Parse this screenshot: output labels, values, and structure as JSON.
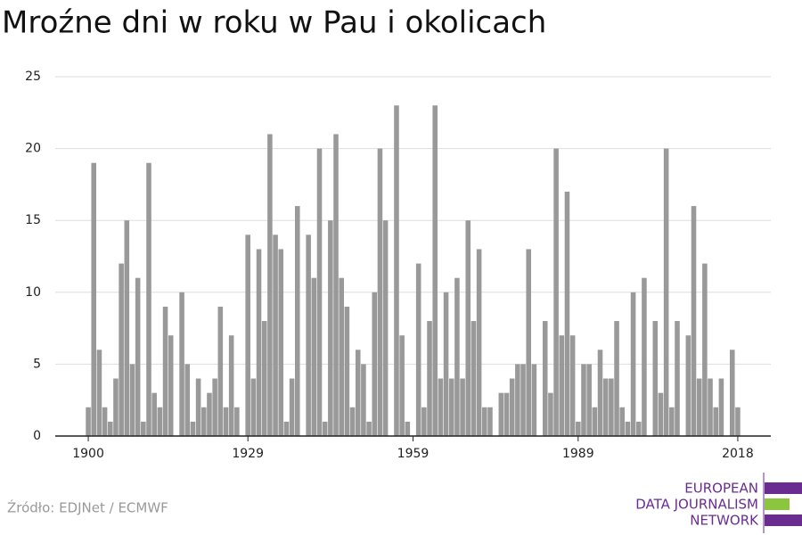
{
  "chart_data": {
    "type": "bar",
    "title": "Mroźne dni w roku w Pau i okolicach",
    "x": [
      1900,
      1901,
      1902,
      1903,
      1904,
      1905,
      1906,
      1907,
      1908,
      1909,
      1910,
      1911,
      1912,
      1913,
      1914,
      1915,
      1916,
      1917,
      1918,
      1919,
      1920,
      1921,
      1922,
      1923,
      1924,
      1925,
      1926,
      1927,
      1928,
      1929,
      1930,
      1931,
      1932,
      1933,
      1934,
      1935,
      1936,
      1937,
      1938,
      1939,
      1940,
      1941,
      1942,
      1943,
      1944,
      1945,
      1946,
      1947,
      1948,
      1949,
      1950,
      1951,
      1952,
      1953,
      1954,
      1955,
      1956,
      1957,
      1958,
      1959,
      1960,
      1961,
      1962,
      1963,
      1964,
      1965,
      1966,
      1967,
      1968,
      1969,
      1970,
      1971,
      1972,
      1973,
      1974,
      1975,
      1976,
      1977,
      1978,
      1979,
      1980,
      1981,
      1982,
      1983,
      1984,
      1985,
      1986,
      1987,
      1988,
      1989,
      1990,
      1991,
      1992,
      1993,
      1994,
      1995,
      1996,
      1997,
      1998,
      1999,
      2000,
      2001,
      2002,
      2003,
      2004,
      2005,
      2006,
      2007,
      2008,
      2009,
      2010,
      2011,
      2012,
      2013,
      2014,
      2015,
      2016,
      2017,
      2018
    ],
    "values": [
      2,
      19,
      6,
      2,
      1,
      4,
      12,
      15,
      5,
      11,
      1,
      19,
      3,
      2,
      9,
      7,
      0,
      10,
      5,
      1,
      4,
      2,
      3,
      4,
      9,
      2,
      7,
      2,
      0,
      14,
      4,
      13,
      8,
      21,
      14,
      13,
      1,
      4,
      16,
      0,
      14,
      11,
      20,
      1,
      15,
      21,
      11,
      9,
      2,
      6,
      5,
      1,
      10,
      20,
      15,
      0,
      23,
      7,
      1,
      0,
      12,
      2,
      8,
      23,
      4,
      10,
      4,
      11,
      4,
      15,
      8,
      13,
      2,
      2,
      0,
      3,
      3,
      4,
      5,
      5,
      13,
      5,
      0,
      8,
      3,
      20,
      7,
      17,
      7,
      1,
      5,
      5,
      2,
      6,
      4,
      4,
      8,
      2,
      1,
      10,
      1,
      11,
      0,
      8,
      3,
      20,
      2,
      8,
      0,
      7,
      16,
      4,
      12,
      4,
      2,
      4,
      0,
      6,
      2
    ],
    "color": "#999999",
    "xlim": [
      1894,
      2024
    ],
    "xticks": [
      1900,
      1929,
      1959,
      1989,
      2018
    ],
    "ylim": [
      0,
      25
    ],
    "yticks": [
      0,
      5,
      10,
      15,
      20,
      25
    ],
    "grid": true,
    "source": "Źródło: EDJNet / ECMWF",
    "logo": [
      "EUROPEAN",
      "DATA JOURNALISM",
      "NETWORK"
    ]
  }
}
